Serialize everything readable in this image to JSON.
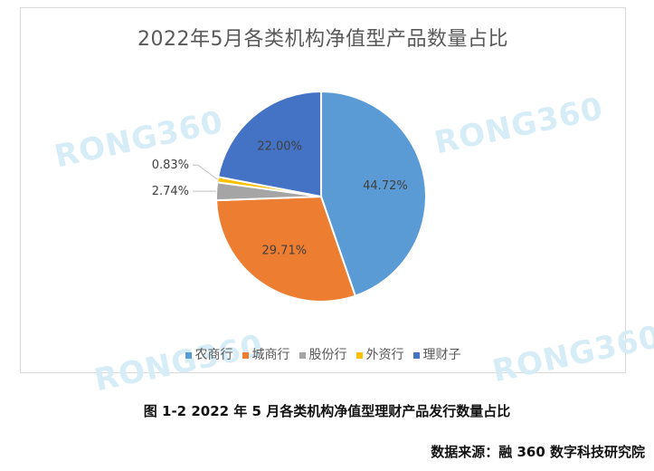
{
  "chart_data": {
    "type": "pie",
    "title": "2022年5月各类机构净值型产品数量占比",
    "categories": [
      "农商行",
      "城商行",
      "股份行",
      "外资行",
      "理财子"
    ],
    "values": [
      44.72,
      29.71,
      2.74,
      0.83,
      22.0
    ],
    "labels": [
      "44.72%",
      "29.71%",
      "2.74%",
      "0.83%",
      "22.00%"
    ],
    "colors": [
      "#5b9bd5",
      "#ed7d31",
      "#a5a5a5",
      "#ffc000",
      "#4472c4"
    ],
    "legend_position": "bottom"
  },
  "watermark": "RONG360",
  "caption": "图 1-2 2022 年 5 月各类机构净值型理财产品发行数量占比",
  "source": "数据来源：融 360 数字科技研究院"
}
